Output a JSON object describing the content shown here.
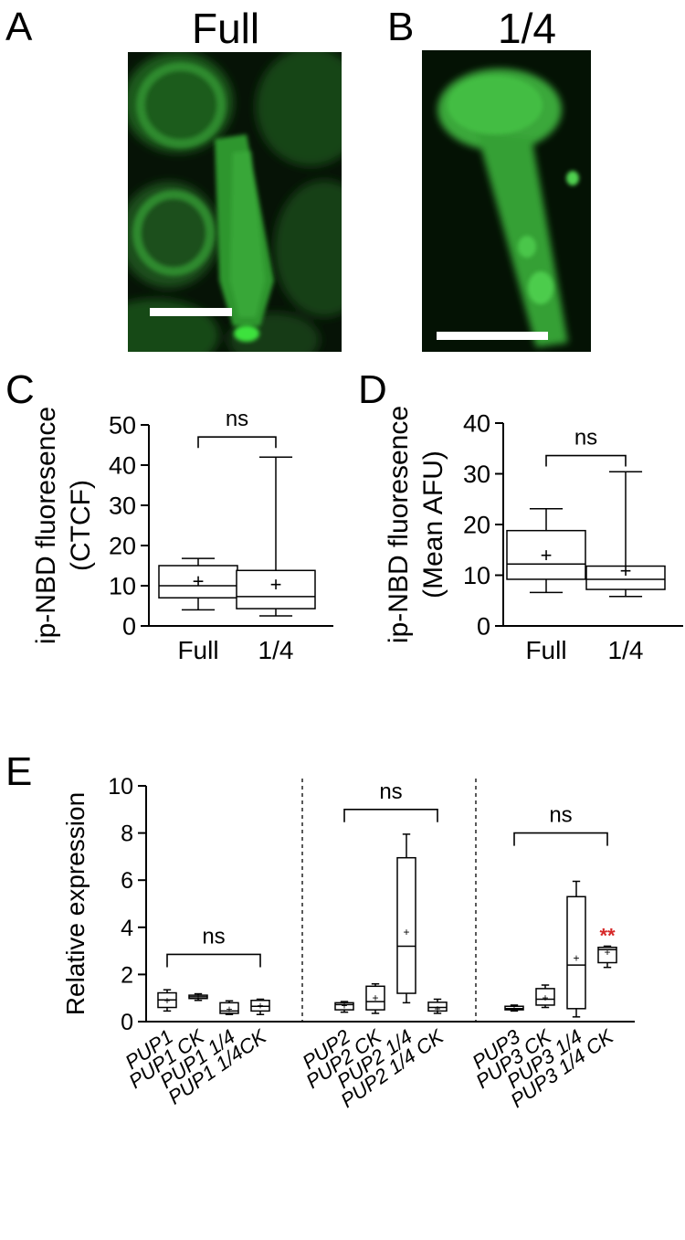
{
  "panels": {
    "A": {
      "letter": "A",
      "title": "Full"
    },
    "B": {
      "letter": "B",
      "title": "1/4"
    },
    "C": {
      "letter": "C"
    },
    "D": {
      "letter": "D"
    },
    "E": {
      "letter": "E"
    }
  },
  "colors": {
    "fluorescence": "#29d129",
    "scalebar": "#ffffff",
    "significance": "#d62828"
  },
  "chart_data": [
    {
      "panel": "C",
      "type": "box",
      "ylabel": "ip-NBD fluoresence (CTCF)",
      "ylim": [
        0,
        50
      ],
      "yticks": [
        0,
        10,
        20,
        30,
        40,
        50
      ],
      "categories": [
        "Full",
        "1/4"
      ],
      "boxes": [
        {
          "min": 4.0,
          "q1": 7.0,
          "median": 10.0,
          "q3": 15.0,
          "max": 16.8,
          "mean": 11.0
        },
        {
          "min": 2.5,
          "q1": 4.3,
          "median": 7.3,
          "q3": 13.8,
          "max": 42.0,
          "mean": 10.2
        }
      ],
      "annotations": [
        {
          "text": "ns",
          "from": 0,
          "to": 1,
          "y": 47
        }
      ]
    },
    {
      "panel": "D",
      "type": "box",
      "ylabel": "ip-NBD fluoresence (Mean AFU)",
      "ylim": [
        0,
        40
      ],
      "yticks": [
        0,
        10,
        20,
        30,
        40
      ],
      "categories": [
        "Full",
        "1/4"
      ],
      "boxes": [
        {
          "min": 6.6,
          "q1": 9.2,
          "median": 12.2,
          "q3": 18.8,
          "max": 23.1,
          "mean": 13.9
        },
        {
          "min": 5.8,
          "q1": 7.2,
          "median": 9.2,
          "q3": 11.8,
          "max": 30.4,
          "mean": 10.8
        }
      ],
      "annotations": [
        {
          "text": "ns",
          "from": 0,
          "to": 1,
          "y": 33.6
        }
      ]
    },
    {
      "panel": "E",
      "type": "box",
      "ylabel": "Relative expression",
      "ylim": [
        0,
        10
      ],
      "yticks": [
        0,
        2,
        4,
        6,
        8,
        10
      ],
      "categories": [
        "PUP1",
        "PUP1 CK",
        "PUP1 1/4",
        "PUP1 1/4CK",
        "PUP2",
        "PUP2 CK",
        "PUP2 1/4",
        "PUP2 1/4 CK",
        "PUP3",
        "PUP3 CK",
        "PUP3 1/4",
        "PUP3 1/4 CK"
      ],
      "boxes": [
        {
          "min": 0.45,
          "q1": 0.6,
          "median": 0.92,
          "q3": 1.22,
          "max": 1.35,
          "mean": 0.9
        },
        {
          "min": 0.9,
          "q1": 0.98,
          "median": 1.05,
          "q3": 1.12,
          "max": 1.18,
          "mean": 1.05
        },
        {
          "min": 0.3,
          "q1": 0.35,
          "median": 0.45,
          "q3": 0.8,
          "max": 0.88,
          "mean": 0.52
        },
        {
          "min": 0.3,
          "q1": 0.45,
          "median": 0.65,
          "q3": 0.9,
          "max": 0.95,
          "mean": 0.68
        },
        {
          "min": 0.4,
          "q1": 0.5,
          "median": 0.72,
          "q3": 0.8,
          "max": 0.85,
          "mean": 0.68
        },
        {
          "min": 0.35,
          "q1": 0.5,
          "median": 0.85,
          "q3": 1.5,
          "max": 1.6,
          "mean": 1.0
        },
        {
          "min": 0.8,
          "q1": 1.2,
          "median": 3.2,
          "q3": 6.95,
          "max": 7.95,
          "mean": 3.8
        },
        {
          "min": 0.35,
          "q1": 0.45,
          "median": 0.6,
          "q3": 0.82,
          "max": 0.95,
          "mean": 0.55
        },
        {
          "min": 0.45,
          "q1": 0.5,
          "median": 0.55,
          "q3": 0.65,
          "max": 0.7,
          "mean": 0.55
        },
        {
          "min": 0.6,
          "q1": 0.7,
          "median": 0.95,
          "q3": 1.4,
          "max": 1.55,
          "mean": 1.0
        },
        {
          "min": 0.2,
          "q1": 0.55,
          "median": 2.4,
          "q3": 5.3,
          "max": 5.95,
          "mean": 2.7
        },
        {
          "min": 2.3,
          "q1": 2.5,
          "median": 3.05,
          "q3": 3.15,
          "max": 3.2,
          "mean": 2.95
        }
      ],
      "separators_after": [
        3,
        7
      ],
      "annotations": [
        {
          "text": "ns",
          "from": 0,
          "to": 3,
          "y": 2.85
        },
        {
          "text": "ns",
          "from": 4,
          "to": 7,
          "y": 9.0
        },
        {
          "text": "ns",
          "from": 8,
          "to": 11,
          "y": 8.0
        },
        {
          "text": "**",
          "from": 11,
          "to": 11,
          "y": 3.35,
          "color": "#d62828"
        }
      ]
    }
  ]
}
